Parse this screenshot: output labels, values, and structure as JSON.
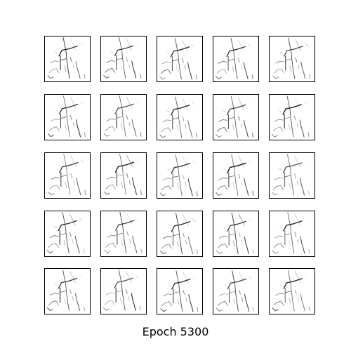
{
  "figure": {
    "caption": "Epoch 5300",
    "grid": {
      "rows": 5,
      "cols": 5
    },
    "tile_border_color": "#000000",
    "background_color": "#ffffff",
    "stroke_color": "#222222"
  }
}
